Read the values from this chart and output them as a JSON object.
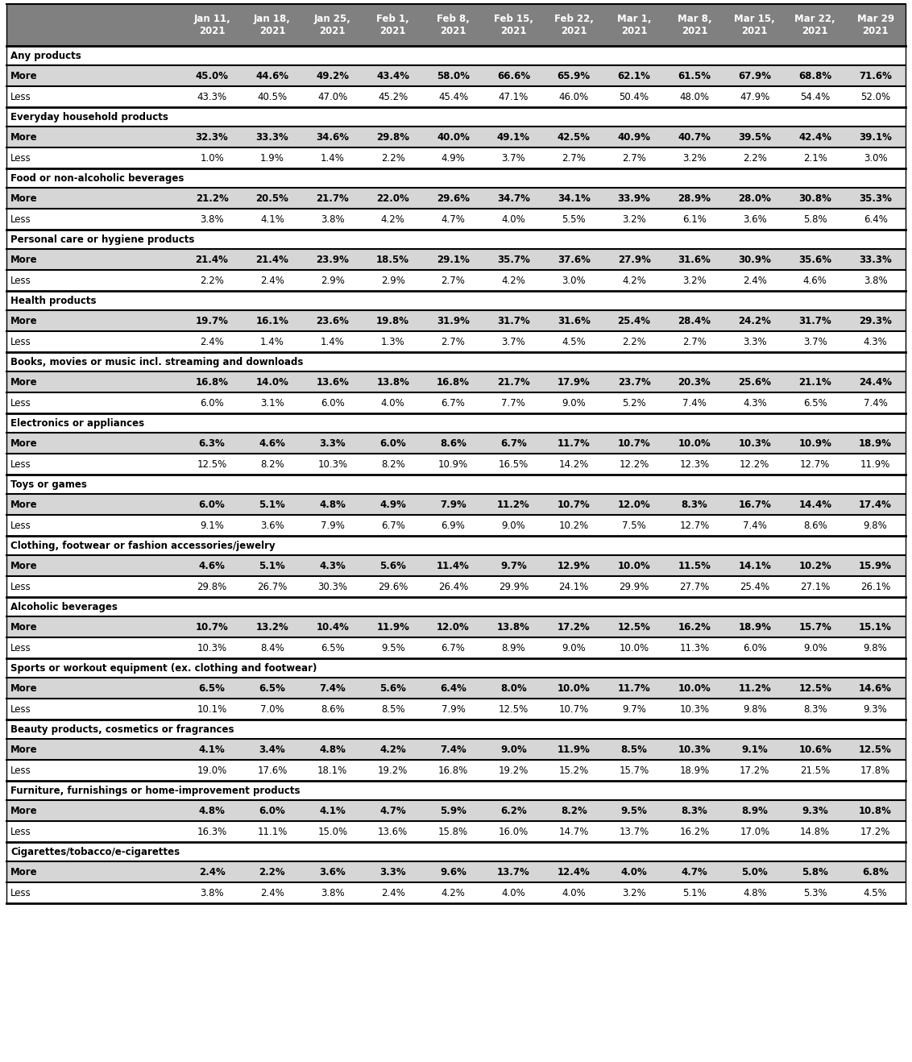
{
  "columns": [
    "Jan 11,\n2021",
    "Jan 18,\n2021",
    "Jan 25,\n2021",
    "Feb 1,\n2021",
    "Feb 8,\n2021",
    "Feb 15,\n2021",
    "Feb 22,\n2021",
    "Mar 1,\n2021",
    "Mar 8,\n2021",
    "Mar 15,\n2021",
    "Mar 22,\n2021",
    "Mar 29\n2021"
  ],
  "header_bg": "#808080",
  "header_fg": "#ffffff",
  "more_bg": "#d6d6d6",
  "less_bg": "#ffffff",
  "cat_bg": "#ffffff",
  "border_color": "#000000",
  "sections": [
    {
      "category": "Any products",
      "more": [
        "45.0%",
        "44.6%",
        "49.2%",
        "43.4%",
        "58.0%",
        "66.6%",
        "65.9%",
        "62.1%",
        "61.5%",
        "67.9%",
        "68.8%",
        "71.6%"
      ],
      "less": [
        "43.3%",
        "40.5%",
        "47.0%",
        "45.2%",
        "45.4%",
        "47.1%",
        "46.0%",
        "50.4%",
        "48.0%",
        "47.9%",
        "54.4%",
        "52.0%"
      ]
    },
    {
      "category": "Everyday household products",
      "more": [
        "32.3%",
        "33.3%",
        "34.6%",
        "29.8%",
        "40.0%",
        "49.1%",
        "42.5%",
        "40.9%",
        "40.7%",
        "39.5%",
        "42.4%",
        "39.1%"
      ],
      "less": [
        "1.0%",
        "1.9%",
        "1.4%",
        "2.2%",
        "4.9%",
        "3.7%",
        "2.7%",
        "2.7%",
        "3.2%",
        "2.2%",
        "2.1%",
        "3.0%"
      ]
    },
    {
      "category": "Food or non-alcoholic beverages",
      "more": [
        "21.2%",
        "20.5%",
        "21.7%",
        "22.0%",
        "29.6%",
        "34.7%",
        "34.1%",
        "33.9%",
        "28.9%",
        "28.0%",
        "30.8%",
        "35.3%"
      ],
      "less": [
        "3.8%",
        "4.1%",
        "3.8%",
        "4.2%",
        "4.7%",
        "4.0%",
        "5.5%",
        "3.2%",
        "6.1%",
        "3.6%",
        "5.8%",
        "6.4%"
      ]
    },
    {
      "category": "Personal care or hygiene products",
      "more": [
        "21.4%",
        "21.4%",
        "23.9%",
        "18.5%",
        "29.1%",
        "35.7%",
        "37.6%",
        "27.9%",
        "31.6%",
        "30.9%",
        "35.6%",
        "33.3%"
      ],
      "less": [
        "2.2%",
        "2.4%",
        "2.9%",
        "2.9%",
        "2.7%",
        "4.2%",
        "3.0%",
        "4.2%",
        "3.2%",
        "2.4%",
        "4.6%",
        "3.8%"
      ]
    },
    {
      "category": "Health products",
      "more": [
        "19.7%",
        "16.1%",
        "23.6%",
        "19.8%",
        "31.9%",
        "31.7%",
        "31.6%",
        "25.4%",
        "28.4%",
        "24.2%",
        "31.7%",
        "29.3%"
      ],
      "less": [
        "2.4%",
        "1.4%",
        "1.4%",
        "1.3%",
        "2.7%",
        "3.7%",
        "4.5%",
        "2.2%",
        "2.7%",
        "3.3%",
        "3.7%",
        "4.3%"
      ]
    },
    {
      "category": "Books, movies or music incl. streaming and downloads",
      "more": [
        "16.8%",
        "14.0%",
        "13.6%",
        "13.8%",
        "16.8%",
        "21.7%",
        "17.9%",
        "23.7%",
        "20.3%",
        "25.6%",
        "21.1%",
        "24.4%"
      ],
      "less": [
        "6.0%",
        "3.1%",
        "6.0%",
        "4.0%",
        "6.7%",
        "7.7%",
        "9.0%",
        "5.2%",
        "7.4%",
        "4.3%",
        "6.5%",
        "7.4%"
      ]
    },
    {
      "category": "Electronics or appliances",
      "more": [
        "6.3%",
        "4.6%",
        "3.3%",
        "6.0%",
        "8.6%",
        "6.7%",
        "11.7%",
        "10.7%",
        "10.0%",
        "10.3%",
        "10.9%",
        "18.9%"
      ],
      "less": [
        "12.5%",
        "8.2%",
        "10.3%",
        "8.2%",
        "10.9%",
        "16.5%",
        "14.2%",
        "12.2%",
        "12.3%",
        "12.2%",
        "12.7%",
        "11.9%"
      ]
    },
    {
      "category": "Toys or games",
      "more": [
        "6.0%",
        "5.1%",
        "4.8%",
        "4.9%",
        "7.9%",
        "11.2%",
        "10.7%",
        "12.0%",
        "8.3%",
        "16.7%",
        "14.4%",
        "17.4%"
      ],
      "less": [
        "9.1%",
        "3.6%",
        "7.9%",
        "6.7%",
        "6.9%",
        "9.0%",
        "10.2%",
        "7.5%",
        "12.7%",
        "7.4%",
        "8.6%",
        "9.8%"
      ]
    },
    {
      "category": "Clothing, footwear or fashion accessories/jewelry",
      "more": [
        "4.6%",
        "5.1%",
        "4.3%",
        "5.6%",
        "11.4%",
        "9.7%",
        "12.9%",
        "10.0%",
        "11.5%",
        "14.1%",
        "10.2%",
        "15.9%"
      ],
      "less": [
        "29.8%",
        "26.7%",
        "30.3%",
        "29.6%",
        "26.4%",
        "29.9%",
        "24.1%",
        "29.9%",
        "27.7%",
        "25.4%",
        "27.1%",
        "26.1%"
      ]
    },
    {
      "category": "Alcoholic beverages",
      "more": [
        "10.7%",
        "13.2%",
        "10.4%",
        "11.9%",
        "12.0%",
        "13.8%",
        "17.2%",
        "12.5%",
        "16.2%",
        "18.9%",
        "15.7%",
        "15.1%"
      ],
      "less": [
        "10.3%",
        "8.4%",
        "6.5%",
        "9.5%",
        "6.7%",
        "8.9%",
        "9.0%",
        "10.0%",
        "11.3%",
        "6.0%",
        "9.0%",
        "9.8%"
      ]
    },
    {
      "category": "Sports or workout equipment (ex. clothing and footwear)",
      "more": [
        "6.5%",
        "6.5%",
        "7.4%",
        "5.6%",
        "6.4%",
        "8.0%",
        "10.0%",
        "11.7%",
        "10.0%",
        "11.2%",
        "12.5%",
        "14.6%"
      ],
      "less": [
        "10.1%",
        "7.0%",
        "8.6%",
        "8.5%",
        "7.9%",
        "12.5%",
        "10.7%",
        "9.7%",
        "10.3%",
        "9.8%",
        "8.3%",
        "9.3%"
      ]
    },
    {
      "category": "Beauty products, cosmetics or fragrances",
      "more": [
        "4.1%",
        "3.4%",
        "4.8%",
        "4.2%",
        "7.4%",
        "9.0%",
        "11.9%",
        "8.5%",
        "10.3%",
        "9.1%",
        "10.6%",
        "12.5%"
      ],
      "less": [
        "19.0%",
        "17.6%",
        "18.1%",
        "19.2%",
        "16.8%",
        "19.2%",
        "15.2%",
        "15.7%",
        "18.9%",
        "17.2%",
        "21.5%",
        "17.8%"
      ]
    },
    {
      "category": "Furniture, furnishings or home-improvement products",
      "more": [
        "4.8%",
        "6.0%",
        "4.1%",
        "4.7%",
        "5.9%",
        "6.2%",
        "8.2%",
        "9.5%",
        "8.3%",
        "8.9%",
        "9.3%",
        "10.8%"
      ],
      "less": [
        "16.3%",
        "11.1%",
        "15.0%",
        "13.6%",
        "15.8%",
        "16.0%",
        "14.7%",
        "13.7%",
        "16.2%",
        "17.0%",
        "14.8%",
        "17.2%"
      ]
    },
    {
      "category": "Cigarettes/tobacco/e-cigarettes",
      "more": [
        "2.4%",
        "2.2%",
        "3.6%",
        "3.3%",
        "9.6%",
        "13.7%",
        "12.4%",
        "4.0%",
        "4.7%",
        "5.0%",
        "5.8%",
        "6.8%"
      ],
      "less": [
        "3.8%",
        "2.4%",
        "3.8%",
        "2.4%",
        "4.2%",
        "4.0%",
        "4.0%",
        "3.2%",
        "5.1%",
        "4.8%",
        "5.3%",
        "4.5%"
      ]
    }
  ]
}
